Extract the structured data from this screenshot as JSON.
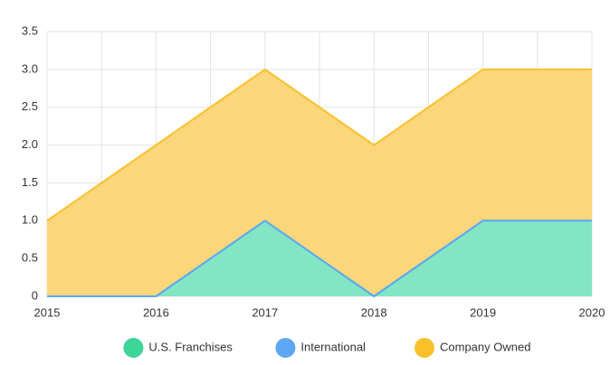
{
  "chart_data": {
    "type": "stacked_area",
    "x": [
      2015,
      2016,
      2017,
      2018,
      2019,
      2020
    ],
    "series": [
      {
        "name": "U.S. Franchises",
        "color": "#3dd598",
        "values": [
          0,
          0,
          1,
          0,
          1,
          1
        ]
      },
      {
        "name": "International",
        "color": "#5ea7f5",
        "values": [
          0,
          0,
          0,
          0,
          0,
          0
        ]
      },
      {
        "name": "Company Owned",
        "color": "#f9c02b",
        "values": [
          1,
          2,
          2,
          2,
          2,
          2
        ]
      }
    ],
    "xlim": [
      2015,
      2020
    ],
    "xticks": [
      2015,
      2016,
      2017,
      2018,
      2019,
      2020
    ],
    "ylim": [
      0,
      3.5
    ],
    "yticks": [
      0,
      0.5,
      {
        "value": 1,
        "label": "1.0"
      },
      1.5,
      {
        "value": 2,
        "label": "2.0"
      },
      2.5,
      {
        "value": 3,
        "label": "3.0"
      },
      3.5
    ],
    "grid": true,
    "legend": "bottom"
  }
}
